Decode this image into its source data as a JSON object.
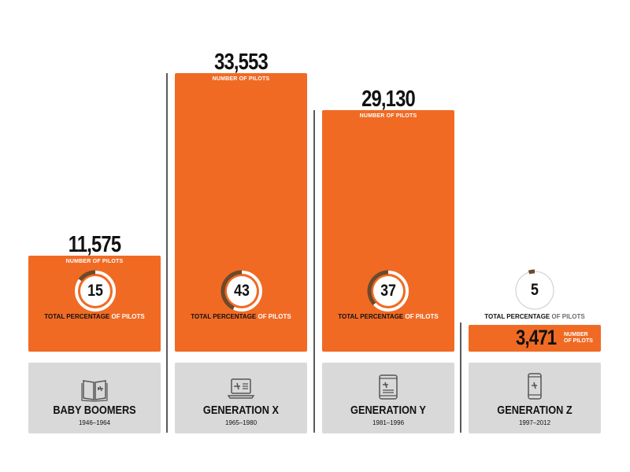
{
  "chart_data": {
    "type": "bar",
    "categories": [
      "BABY BOOMERS",
      "GENERATION X",
      "GENERATION Y",
      "GENERATION Z"
    ],
    "years": [
      "1946–1964",
      "1965–1980",
      "1981–1996",
      "1997–2012"
    ],
    "values": [
      11575,
      33553,
      29130,
      3471
    ],
    "value_labels": [
      "11,575",
      "33,553",
      "29,130",
      "3,471"
    ],
    "value_caption": "NUMBER OF PILOTS",
    "small_caption_lines": [
      "NUMBER",
      "OF PILOTS"
    ],
    "percentages": [
      15,
      43,
      37,
      5
    ],
    "percent_caption_a": "TOTAL PERCENTAGE",
    "percent_caption_b": " OF PILOTS",
    "ylim": [
      0,
      33553
    ],
    "colors": {
      "bar": "#f06a24",
      "ring": "#6b4a2a",
      "card": "#d9d9da"
    },
    "icons": [
      "book-plane-icon",
      "laptop-plane-icon",
      "tablet-plane-icon",
      "phone-plane-icon"
    ]
  }
}
